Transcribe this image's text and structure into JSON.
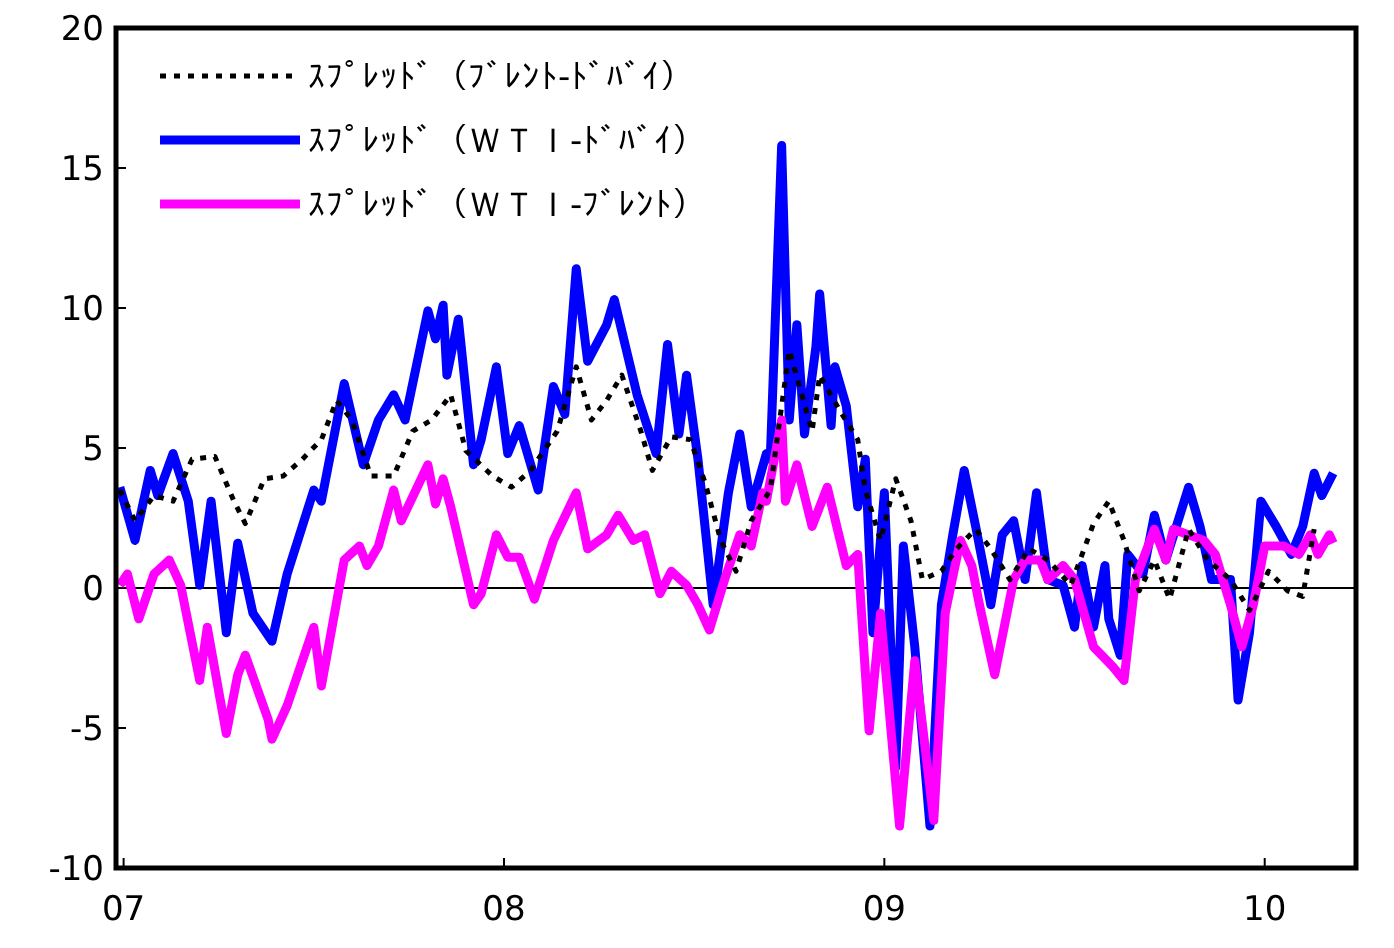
{
  "chart_data": {
    "type": "line",
    "xlim": [
      2006.98,
      2010.24
    ],
    "xticks": [
      {
        "value": 2007,
        "label": "07"
      },
      {
        "value": 2008,
        "label": "08"
      },
      {
        "value": 2009,
        "label": "09"
      },
      {
        "value": 2010,
        "label": "10"
      }
    ],
    "ylim": [
      -10,
      20
    ],
    "yticks": [
      -10,
      -5,
      0,
      5,
      10,
      15,
      20
    ],
    "grid": false,
    "legend": "top left",
    "ref_lines": [
      {
        "axis": "y",
        "value": 0,
        "color": "#000000"
      }
    ],
    "series": [
      {
        "name": "ｽﾌﾟﾚｯﾄﾞ（ﾌﾞﾚﾝﾄ-ﾄﾞﾊﾞｲ）",
        "color": "#000000",
        "line_style": "dashed",
        "x": [
          2006.99,
          2007.03,
          2007.08,
          2007.13,
          2007.18,
          2007.24,
          2007.29,
          2007.32,
          2007.37,
          2007.42,
          2007.47,
          2007.52,
          2007.56,
          2007.6,
          2007.65,
          2007.71,
          2007.76,
          2007.81,
          2007.86,
          2007.9,
          2007.97,
          2008.02,
          2008.07,
          2008.14,
          2008.19,
          2008.23,
          2008.27,
          2008.31,
          2008.36,
          2008.39,
          2008.44,
          2008.49,
          2008.53,
          2008.57,
          2008.61,
          2008.65,
          2008.7,
          2008.75,
          2008.81,
          2008.83,
          2008.88,
          2008.93,
          2008.95,
          2008.99,
          2009.03,
          2009.07,
          2009.1,
          2009.15,
          2009.19,
          2009.24,
          2009.28,
          2009.33,
          2009.38,
          2009.43,
          2009.49,
          2009.55,
          2009.59,
          2009.63,
          2009.67,
          2009.71,
          2009.75,
          2009.8,
          2009.85,
          2009.91,
          2009.96,
          2010.01,
          2010.06,
          2010.1,
          2010.13
        ],
        "values": [
          3.5,
          2.4,
          3.3,
          3.1,
          4.6,
          4.7,
          3.1,
          2.3,
          3.9,
          4.0,
          4.6,
          5.3,
          6.7,
          6.0,
          4.0,
          4.0,
          5.6,
          6.0,
          6.9,
          4.9,
          4.0,
          3.6,
          4.2,
          5.6,
          7.9,
          6.0,
          6.7,
          7.6,
          5.6,
          4.2,
          5.4,
          5.3,
          3.7,
          1.7,
          0.6,
          2.4,
          3.5,
          8.5,
          5.6,
          7.6,
          6.4,
          5.3,
          3.5,
          1.7,
          3.9,
          2.4,
          0.3,
          0.6,
          1.4,
          2.1,
          1.4,
          0.3,
          1.4,
          1.0,
          0.1,
          2.3,
          3.1,
          1.7,
          -0.1,
          1.0,
          -0.4,
          2.1,
          1.0,
          0.3,
          -0.8,
          0.6,
          -0.1,
          -0.3,
          2.1
        ]
      },
      {
        "name": "ｽﾌﾟﾚｯﾄﾞ（ＷＴＩ-ﾄﾞﾊﾞｲ）",
        "color": "#0000ff",
        "line_style": "solid",
        "x": [
          2006.99,
          2007.03,
          2007.07,
          2007.09,
          2007.13,
          2007.17,
          2007.2,
          2007.23,
          2007.27,
          2007.3,
          2007.34,
          2007.39,
          2007.43,
          2007.5,
          2007.52,
          2007.58,
          2007.63,
          2007.67,
          2007.71,
          2007.74,
          2007.8,
          2007.82,
          2007.84,
          2007.85,
          2007.88,
          2007.92,
          2007.94,
          2007.98,
          2008.01,
          2008.04,
          2008.09,
          2008.13,
          2008.16,
          2008.19,
          2008.22,
          2008.27,
          2008.29,
          2008.32,
          2008.35,
          2008.4,
          2008.43,
          2008.46,
          2008.48,
          2008.51,
          2008.55,
          2008.59,
          2008.62,
          2008.65,
          2008.69,
          2008.7,
          2008.73,
          2008.75,
          2008.77,
          2008.79,
          2008.82,
          2008.83,
          2008.86,
          2008.87,
          2008.9,
          2008.93,
          2008.95,
          2008.97,
          2009.0,
          2009.03,
          2009.05,
          2009.08,
          2009.12,
          2009.15,
          2009.18,
          2009.21,
          2009.24,
          2009.28,
          2009.31,
          2009.34,
          2009.37,
          2009.4,
          2009.43,
          2009.47,
          2009.5,
          2009.52,
          2009.55,
          2009.58,
          2009.59,
          2009.62,
          2009.64,
          2009.68,
          2009.71,
          2009.74,
          2009.8,
          2009.83,
          2009.86,
          2009.91,
          2009.93,
          2009.96,
          2009.99,
          2010.03,
          2010.07,
          2010.1,
          2010.13,
          2010.15,
          2010.18
        ],
        "values": [
          3.6,
          1.7,
          4.2,
          3.3,
          4.8,
          3.1,
          0.1,
          3.1,
          -1.6,
          1.6,
          -0.9,
          -1.9,
          0.5,
          3.5,
          3.1,
          7.3,
          4.4,
          6.0,
          6.9,
          6.0,
          9.9,
          8.9,
          10.1,
          7.6,
          9.6,
          4.4,
          5.3,
          7.9,
          4.8,
          5.8,
          3.5,
          7.2,
          6.2,
          11.4,
          8.1,
          9.4,
          10.3,
          8.6,
          6.9,
          4.8,
          8.7,
          5.5,
          7.6,
          4.6,
          -0.6,
          3.4,
          5.5,
          2.9,
          4.8,
          4.6,
          15.8,
          6.0,
          9.4,
          5.5,
          8.6,
          10.5,
          5.8,
          7.9,
          6.5,
          2.9,
          4.6,
          -1.6,
          3.4,
          -6.4,
          1.5,
          -2.1,
          -8.5,
          -0.6,
          1.9,
          4.2,
          2.2,
          -0.6,
          1.9,
          2.4,
          0.3,
          3.4,
          0.3,
          0.1,
          -1.4,
          0.8,
          -1.4,
          0.8,
          -1.1,
          -2.4,
          1.2,
          0.5,
          2.6,
          1.0,
          3.6,
          2.2,
          0.3,
          0.3,
          -4.0,
          -1.6,
          3.1,
          2.2,
          1.2,
          2.2,
          4.1,
          3.3,
          4.1
        ]
      },
      {
        "name": "ｽﾌﾟﾚｯﾄﾞ（ＷＴＩ-ﾌﾞﾚﾝﾄ）",
        "color": "#ff00ff",
        "line_style": "solid",
        "x": [
          2006.99,
          2007.01,
          2007.04,
          2007.08,
          2007.12,
          2007.15,
          2007.2,
          2007.22,
          2007.27,
          2007.3,
          2007.32,
          2007.38,
          2007.39,
          2007.43,
          2007.5,
          2007.52,
          2007.58,
          2007.62,
          2007.64,
          2007.67,
          2007.71,
          2007.73,
          2007.8,
          2007.82,
          2007.84,
          2007.86,
          2007.92,
          2007.94,
          2007.98,
          2008.01,
          2008.04,
          2008.08,
          2008.13,
          2008.19,
          2008.22,
          2008.27,
          2008.3,
          2008.34,
          2008.37,
          2008.41,
          2008.44,
          2008.48,
          2008.51,
          2008.54,
          2008.58,
          2008.62,
          2008.65,
          2008.68,
          2008.69,
          2008.73,
          2008.74,
          2008.77,
          2008.81,
          2008.85,
          2008.9,
          2008.93,
          2008.96,
          2008.99,
          2009.04,
          2009.08,
          2009.13,
          2009.16,
          2009.2,
          2009.23,
          2009.25,
          2009.29,
          2009.34,
          2009.37,
          2009.41,
          2009.43,
          2009.47,
          2009.5,
          2009.55,
          2009.6,
          2009.63,
          2009.66,
          2009.71,
          2009.74,
          2009.76,
          2009.84,
          2009.87,
          2009.91,
          2009.94,
          2009.97,
          2010.0,
          2010.05,
          2010.09,
          2010.12,
          2010.14,
          2010.17,
          2010.18
        ],
        "values": [
          0.1,
          0.5,
          -1.1,
          0.5,
          1.0,
          0.1,
          -3.3,
          -1.4,
          -5.2,
          -3.1,
          -2.4,
          -4.7,
          -5.4,
          -4.2,
          -1.4,
          -3.5,
          1.0,
          1.5,
          0.8,
          1.5,
          3.5,
          2.4,
          4.4,
          3.0,
          3.9,
          2.9,
          -0.6,
          -0.2,
          1.9,
          1.1,
          1.1,
          -0.4,
          1.7,
          3.4,
          1.4,
          1.9,
          2.6,
          1.7,
          1.9,
          -0.2,
          0.6,
          0.1,
          -0.6,
          -1.5,
          0.3,
          1.9,
          1.5,
          3.4,
          3.1,
          6.0,
          3.1,
          4.4,
          2.2,
          3.6,
          0.8,
          1.2,
          -5.1,
          -0.9,
          -8.5,
          -2.6,
          -8.3,
          -0.9,
          1.7,
          0.8,
          -0.6,
          -3.1,
          0.3,
          1.0,
          1.0,
          0.3,
          0.8,
          0.3,
          -2.1,
          -2.8,
          -3.3,
          0.3,
          2.1,
          1.0,
          2.1,
          1.7,
          1.2,
          -0.6,
          -2.1,
          -0.6,
          1.5,
          1.5,
          1.2,
          1.9,
          1.2,
          1.9,
          1.6
        ]
      }
    ]
  }
}
